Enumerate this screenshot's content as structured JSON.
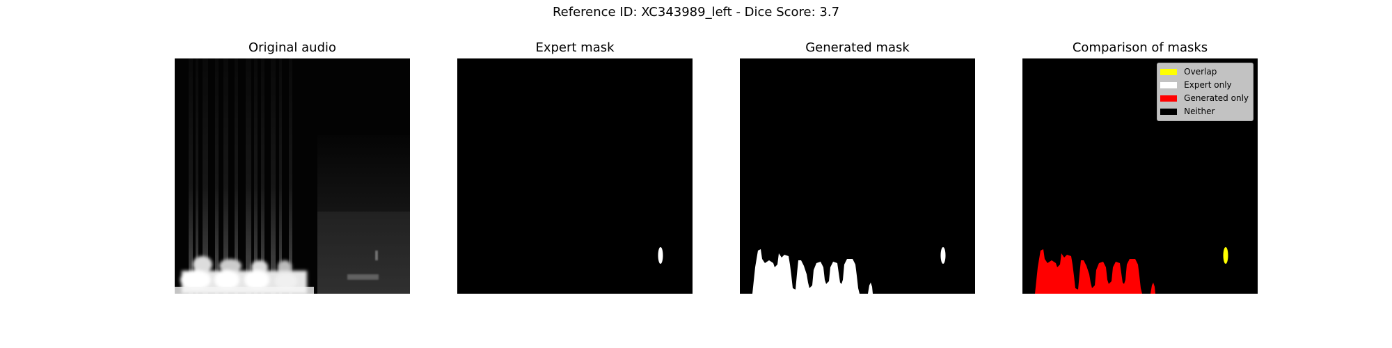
{
  "figure": {
    "title": "Reference ID: XC343989_left - Dice Score: 3.7"
  },
  "panels": [
    {
      "title": "Original audio"
    },
    {
      "title": "Expert mask"
    },
    {
      "title": "Generated mask"
    },
    {
      "title": "Comparison of masks"
    }
  ],
  "legend": {
    "items": [
      {
        "label": "Overlap",
        "color": "#ffff00"
      },
      {
        "label": "Expert only",
        "color": "#ffffff"
      },
      {
        "label": "Generated only",
        "color": "#ff0000"
      },
      {
        "label": "Neither",
        "color": "#000000"
      }
    ]
  }
}
